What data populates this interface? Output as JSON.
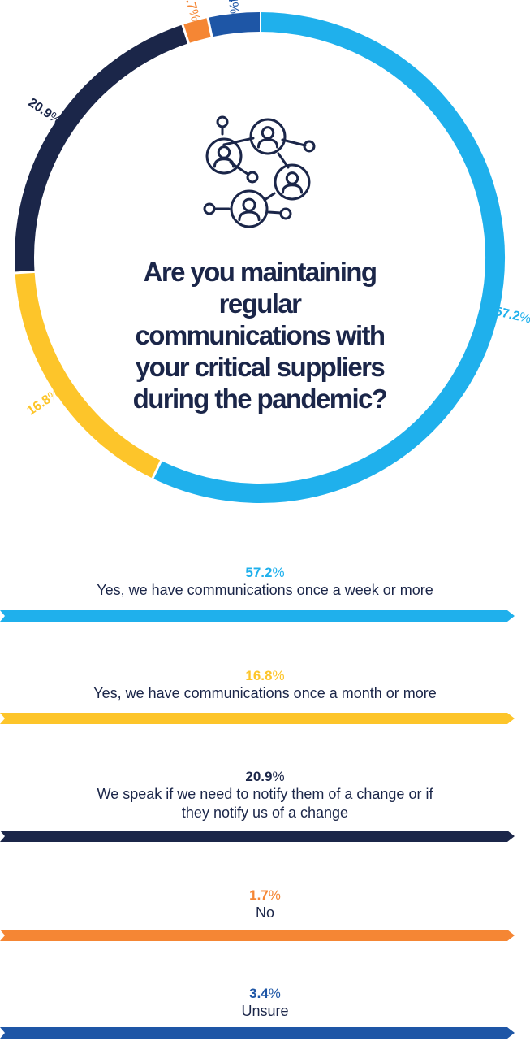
{
  "question": "Are you maintaining regular communications with your critical suppliers during the pandemic?",
  "icon": "network-people-icon",
  "colors": {
    "dark_navy": "#1b2649",
    "sky_blue": "#1fb0ec",
    "yellow": "#fdc52a",
    "orange": "#f58634",
    "royal_blue": "#1e56a6"
  },
  "chart_data": {
    "type": "pie",
    "title": "Are you maintaining regular communications with your critical suppliers during the pandemic?",
    "slices": [
      {
        "pct": "57.2",
        "value": 57.2,
        "label": "Yes, we have communications once a week or more",
        "color": "#1fb0ec"
      },
      {
        "pct": "16.8",
        "value": 16.8,
        "label": "Yes, we have communications once a month or more",
        "color": "#fdc52a"
      },
      {
        "pct": "20.9",
        "value": 20.9,
        "label": "We speak if we need to notify them of a change or if they notify us of a change",
        "color": "#1b2649"
      },
      {
        "pct": "1.7",
        "value": 1.7,
        "label": "No",
        "color": "#f58634"
      },
      {
        "pct": "3.4",
        "value": 3.4,
        "label": "Unsure",
        "color": "#1e56a6"
      }
    ],
    "percent_symbol": "%"
  }
}
